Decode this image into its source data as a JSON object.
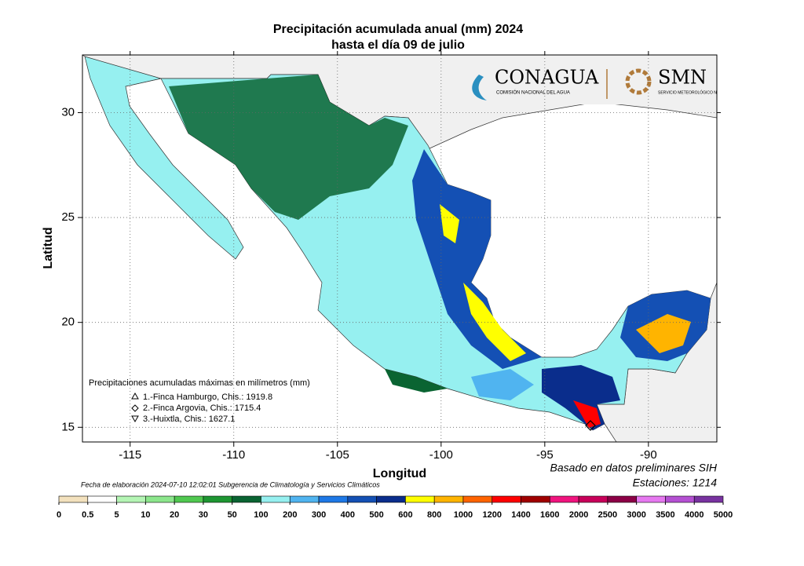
{
  "chart_data": {
    "type": "map",
    "title": "Precipitación acumulada anual (mm) 2024",
    "subtitle": "hasta el día 09 de julio",
    "x_label": "Longitud",
    "y_label": "Latitud",
    "xlim": [
      -117.3,
      -86.7
    ],
    "ylim": [
      14.3,
      32.75
    ],
    "xticks": [
      -115,
      -110,
      -105,
      -100,
      -95,
      -90
    ],
    "yticks": [
      30,
      25,
      20,
      15
    ],
    "grid": true,
    "legend_title": "Precipitaciones acumuladas máximas en milímetros (mm)",
    "stations": [
      "1.-Finca Hamburgo, Chis.: 1919.8",
      "2.-Finca Argovia, Chis.: 1715.4",
      "3.-Huixtla, Chis.: 1627.1"
    ],
    "note_1": "Basado en datos preliminares SIH",
    "note_2": "Estaciones:  1214",
    "footer": "Fecha de elaboración 2024-07-10 12:02:01 Subgerencia de Climatología y Servicios Climáticos",
    "logo_1": "CONAGUA",
    "logo_1_sub": "COMISIÓN NACIONAL DEL AGUA",
    "logo_2": "SMN",
    "logo_2_sub": "SERVICIO METEOROLÓGICO NACIONAL",
    "colorbar": {
      "bounds": [
        0,
        0.5,
        5,
        10,
        20,
        30,
        50,
        100,
        200,
        300,
        400,
        500,
        600,
        800,
        1000,
        1200,
        1400,
        1600,
        2000,
        2500,
        3000,
        3500,
        4000,
        5000
      ],
      "colors": [
        "#f3e1bd",
        "#ffffff",
        "#b4f5b4",
        "#8ce68c",
        "#50c850",
        "#1e9632",
        "#0a6432",
        "#96f0f0",
        "#50b4f0",
        "#1e78e6",
        "#1450b4",
        "#0a2d8c",
        "#ffff00",
        "#ffb400",
        "#ff6400",
        "#ff0000",
        "#a00000",
        "#f0147e",
        "#c8005a",
        "#8c0046",
        "#e678f0",
        "#b450d2",
        "#7832a0"
      ]
    }
  }
}
